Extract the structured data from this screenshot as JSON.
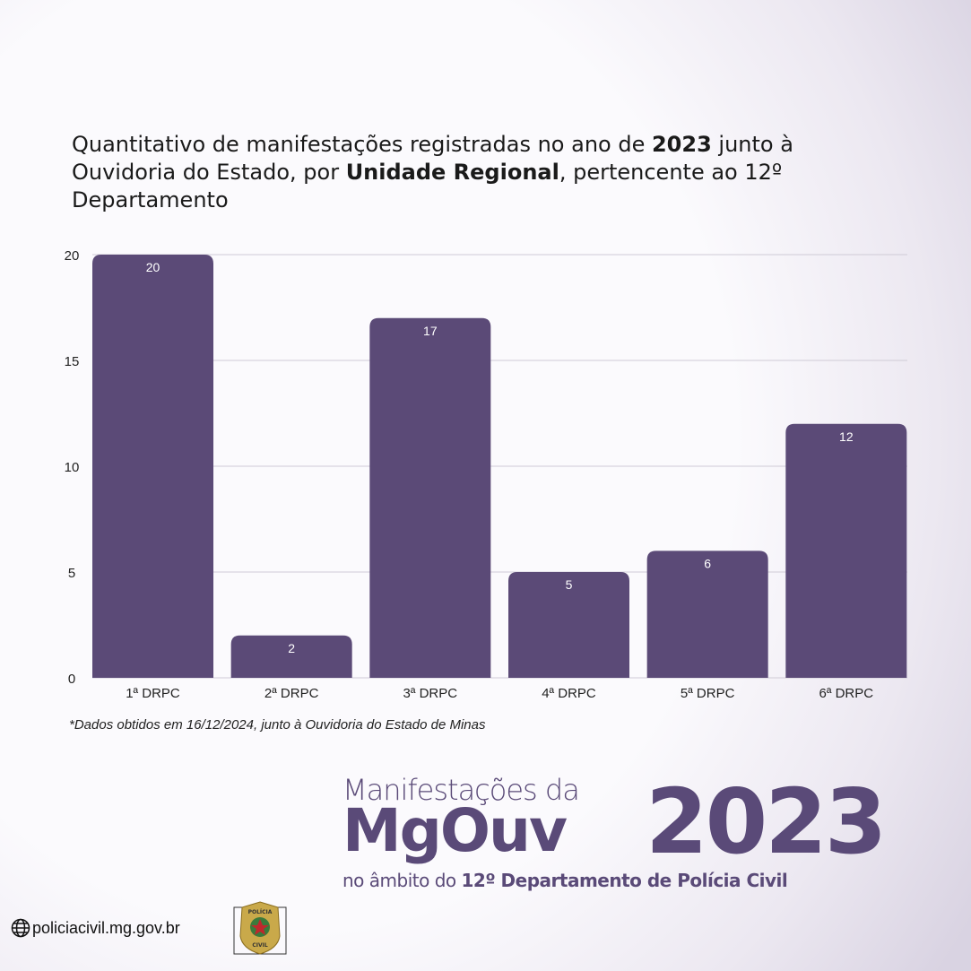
{
  "title": {
    "pre": "Quantitativo de manifestações registradas no ano de ",
    "b1": "2023",
    "mid": " junto à Ouvidoria do Estado, por ",
    "b2": "Unidade Regional",
    "post": ", pertencente ao 12º Departamento"
  },
  "chart_data": {
    "type": "bar",
    "categories": [
      "1ª DRPC",
      "2ª DRPC",
      "3ª DRPC",
      "4ª DRPC",
      "5ª DRPC",
      "6ª DRPC"
    ],
    "values": [
      20,
      2,
      17,
      5,
      6,
      12
    ],
    "data_labels": [
      "20",
      "2",
      "17",
      "5",
      "6",
      "12"
    ],
    "yticks": [
      "0",
      "5",
      "10",
      "15",
      "20"
    ],
    "ylim": [
      0,
      20
    ],
    "grid": true,
    "bar_color": "#5b4a77",
    "label_color": "#ffffff"
  },
  "note": "*Dados obtidos em 16/12/2024, junto à Ouvidoria do Estado de Minas",
  "brand": {
    "line1": "Manifestações da",
    "line2": "MgOuv",
    "year": "2023",
    "line3_pre": "no âmbito do ",
    "line3_bold": "12º Departamento de Polícia Civil",
    "color": "#5a4a78"
  },
  "footer": {
    "site": "policiacivil.mg.gov.br",
    "site_icon": "globe-icon",
    "badge_text_top": "POLÍCIA",
    "badge_text_bottom": "CIVIL"
  }
}
